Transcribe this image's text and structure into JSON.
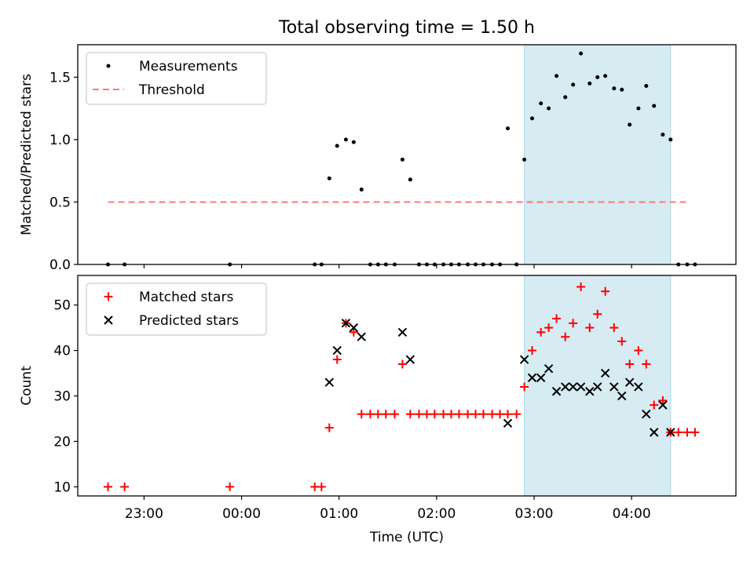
{
  "chart_data": {
    "title": "Total observing time = 1.50 h",
    "xlabel": "Time (UTC)",
    "x_ticks": [
      "23:00",
      "00:00",
      "01:00",
      "02:00",
      "03:00",
      "04:00"
    ],
    "x_tick_hours": [
      23,
      24,
      25,
      26,
      27,
      28
    ],
    "xlim_hours": [
      22.32,
      29.07
    ],
    "highlight_span_hours": [
      26.9,
      28.4
    ],
    "highlight_color": "#add8e6",
    "panels": [
      {
        "type": "scatter",
        "ylabel": "Matched/Predicted stars",
        "ylim": [
          0,
          1.76
        ],
        "y_ticks": [
          "0.0",
          "0.5",
          "1.0",
          "1.5"
        ],
        "y_tick_values": [
          0,
          0.5,
          1.0,
          1.5
        ],
        "legend_position": "upper-left",
        "series": [
          {
            "name": "Measurements",
            "marker": "dot",
            "color": "#000000",
            "points": [
              [
                22.63,
                0
              ],
              [
                22.8,
                0
              ],
              [
                23.88,
                0
              ],
              [
                24.75,
                0
              ],
              [
                24.82,
                0
              ],
              [
                24.9,
                0.69
              ],
              [
                24.98,
                0.95
              ],
              [
                25.07,
                1.0
              ],
              [
                25.15,
                0.98
              ],
              [
                25.23,
                0.6
              ],
              [
                25.32,
                0
              ],
              [
                25.4,
                0
              ],
              [
                25.48,
                0
              ],
              [
                25.57,
                0
              ],
              [
                25.65,
                0.84
              ],
              [
                25.73,
                0.68
              ],
              [
                25.82,
                0
              ],
              [
                25.9,
                0
              ],
              [
                25.98,
                0
              ],
              [
                26.07,
                0
              ],
              [
                26.15,
                0
              ],
              [
                26.23,
                0
              ],
              [
                26.32,
                0
              ],
              [
                26.4,
                0
              ],
              [
                26.48,
                0
              ],
              [
                26.57,
                0
              ],
              [
                26.65,
                0
              ],
              [
                26.73,
                1.09
              ],
              [
                26.82,
                0
              ],
              [
                26.9,
                0.84
              ],
              [
                26.98,
                1.17
              ],
              [
                27.07,
                1.29
              ],
              [
                27.15,
                1.25
              ],
              [
                27.23,
                1.51
              ],
              [
                27.32,
                1.34
              ],
              [
                27.4,
                1.44
              ],
              [
                27.48,
                1.69
              ],
              [
                27.57,
                1.45
              ],
              [
                27.65,
                1.5
              ],
              [
                27.73,
                1.51
              ],
              [
                27.82,
                1.41
              ],
              [
                27.9,
                1.4
              ],
              [
                27.98,
                1.12
              ],
              [
                28.07,
                1.25
              ],
              [
                28.15,
                1.43
              ],
              [
                28.23,
                1.27
              ],
              [
                28.32,
                1.04
              ],
              [
                28.4,
                1.0
              ],
              [
                28.48,
                0
              ],
              [
                28.57,
                0
              ],
              [
                28.65,
                0
              ]
            ]
          },
          {
            "name": "Threshold",
            "type": "line",
            "dash": true,
            "color": "#ff7777",
            "points": [
              [
                22.63,
                0.5
              ],
              [
                28.6,
                0.5
              ]
            ]
          }
        ]
      },
      {
        "type": "scatter",
        "ylabel": "Count",
        "ylim": [
          8,
          56.5
        ],
        "y_ticks": [
          "10",
          "20",
          "30",
          "40",
          "50"
        ],
        "y_tick_values": [
          10,
          20,
          30,
          40,
          50
        ],
        "legend_position": "upper-left",
        "series": [
          {
            "name": "Matched stars",
            "marker": "plus",
            "color": "#ff0000",
            "points": [
              [
                22.63,
                10
              ],
              [
                22.8,
                10
              ],
              [
                23.88,
                10
              ],
              [
                24.75,
                10
              ],
              [
                24.82,
                10
              ],
              [
                24.9,
                23
              ],
              [
                24.98,
                38
              ],
              [
                25.07,
                46
              ],
              [
                25.15,
                44
              ],
              [
                25.23,
                26
              ],
              [
                25.32,
                26
              ],
              [
                25.4,
                26
              ],
              [
                25.48,
                26
              ],
              [
                25.57,
                26
              ],
              [
                25.65,
                37
              ],
              [
                25.73,
                26
              ],
              [
                25.82,
                26
              ],
              [
                25.9,
                26
              ],
              [
                25.98,
                26
              ],
              [
                26.07,
                26
              ],
              [
                26.15,
                26
              ],
              [
                26.23,
                26
              ],
              [
                26.32,
                26
              ],
              [
                26.4,
                26
              ],
              [
                26.48,
                26
              ],
              [
                26.57,
                26
              ],
              [
                26.65,
                26
              ],
              [
                26.73,
                26
              ],
              [
                26.82,
                26
              ],
              [
                26.9,
                32
              ],
              [
                26.98,
                40
              ],
              [
                27.07,
                44
              ],
              [
                27.15,
                45
              ],
              [
                27.23,
                47
              ],
              [
                27.32,
                43
              ],
              [
                27.4,
                46
              ],
              [
                27.48,
                54
              ],
              [
                27.57,
                45
              ],
              [
                27.65,
                48
              ],
              [
                27.73,
                53
              ],
              [
                27.82,
                45
              ],
              [
                27.9,
                42
              ],
              [
                27.98,
                37
              ],
              [
                28.07,
                40
              ],
              [
                28.15,
                37
              ],
              [
                28.23,
                28
              ],
              [
                28.32,
                29
              ],
              [
                28.4,
                22
              ],
              [
                28.48,
                22
              ],
              [
                28.57,
                22
              ],
              [
                28.65,
                22
              ]
            ]
          },
          {
            "name": "Predicted stars",
            "marker": "x",
            "color": "#000000",
            "points": [
              [
                24.9,
                33
              ],
              [
                24.98,
                40
              ],
              [
                25.07,
                46
              ],
              [
                25.15,
                45
              ],
              [
                25.23,
                43
              ],
              [
                25.65,
                44
              ],
              [
                25.73,
                38
              ],
              [
                26.73,
                24
              ],
              [
                26.9,
                38
              ],
              [
                26.98,
                34
              ],
              [
                27.07,
                34
              ],
              [
                27.15,
                36
              ],
              [
                27.23,
                31
              ],
              [
                27.32,
                32
              ],
              [
                27.4,
                32
              ],
              [
                27.48,
                32
              ],
              [
                27.57,
                31
              ],
              [
                27.65,
                32
              ],
              [
                27.73,
                35
              ],
              [
                27.82,
                32
              ],
              [
                27.9,
                30
              ],
              [
                27.98,
                33
              ],
              [
                28.07,
                32
              ],
              [
                28.15,
                26
              ],
              [
                28.23,
                22
              ],
              [
                28.32,
                28
              ],
              [
                28.4,
                22
              ]
            ]
          }
        ]
      }
    ]
  }
}
